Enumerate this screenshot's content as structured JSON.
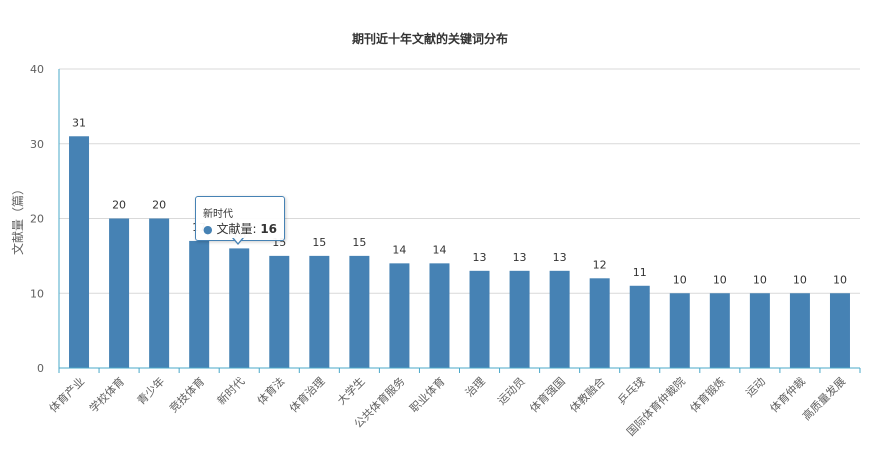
{
  "chart_data": {
    "type": "bar",
    "title": "期刊近十年文献的关键词分布",
    "ylabel": "文献量（篇）",
    "xlabel": "",
    "ylim": [
      0,
      40
    ],
    "yticks": [
      0,
      10,
      20,
      30,
      40
    ],
    "grid": true,
    "legend": "none",
    "categories": [
      "体育产业",
      "学校体育",
      "青少年",
      "竞技体育",
      "新时代",
      "体育法",
      "体育治理",
      "大学生",
      "公共体育服务",
      "职业体育",
      "治理",
      "运动员",
      "体育强国",
      "体教融合",
      "乒乓球",
      "国际体育仲裁院",
      "体育锻炼",
      "运动",
      "体育仲裁",
      "高质量发展"
    ],
    "series": [
      {
        "values": [
          31,
          20,
          20,
          17,
          16,
          15,
          15,
          15,
          14,
          14,
          13,
          13,
          13,
          12,
          11,
          10,
          10,
          10,
          10,
          10
        ]
      }
    ],
    "colors": {
      "bar": "#4682b4",
      "grid": "#d9d9d9",
      "axis": "#4aa8c9"
    }
  },
  "tooltip": {
    "category": "新时代",
    "series_label": "文献量",
    "value": "16"
  }
}
